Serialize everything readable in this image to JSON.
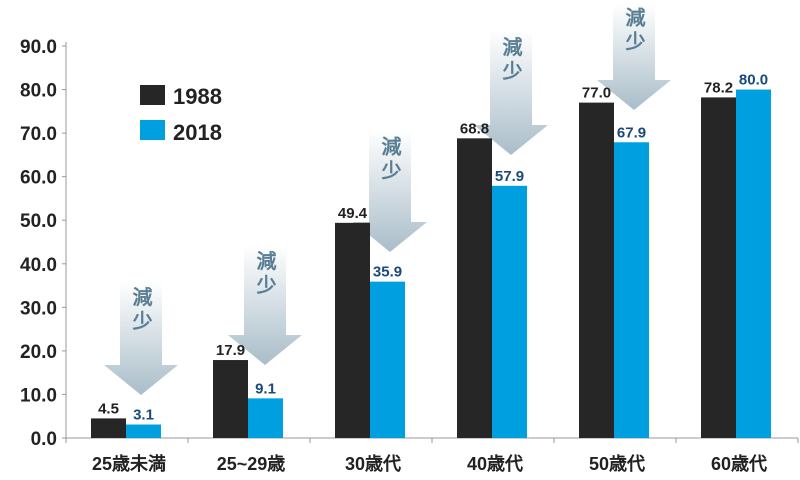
{
  "chart_data": {
    "type": "bar",
    "categories": [
      "25歳未満",
      "25~29歳",
      "30歳代",
      "40歳代",
      "50歳代",
      "60歳代"
    ],
    "series": [
      {
        "name": "1988",
        "values": [
          4.5,
          17.9,
          49.4,
          68.8,
          77.0,
          78.2
        ],
        "color": "#262626",
        "label_color": "#222222"
      },
      {
        "name": "2018",
        "values": [
          3.1,
          9.1,
          35.9,
          57.9,
          67.9,
          80.0
        ],
        "color": "#00a0e0",
        "label_color": "#1a4a7a"
      }
    ],
    "ylim": [
      0,
      90
    ],
    "yticks": [
      "0.0",
      "10.0",
      "20.0",
      "30.0",
      "40.0",
      "50.0",
      "60.0",
      "70.0",
      "80.0",
      "90.0"
    ],
    "grid": false,
    "legend": "top-left",
    "annotations": {
      "text": "減少",
      "categories": [
        "25歳未満",
        "25~29歳",
        "30歳代",
        "40歳代",
        "50歳代"
      ],
      "shape": "down-arrow"
    }
  }
}
